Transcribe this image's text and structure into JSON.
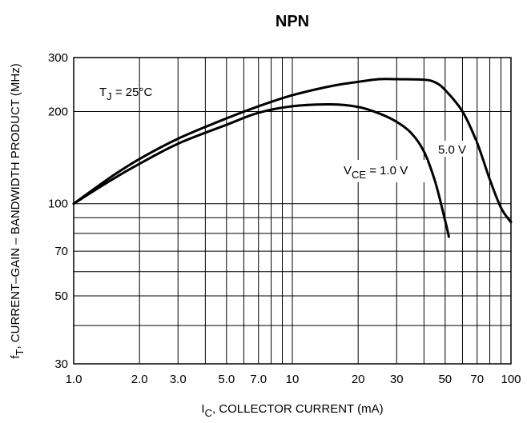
{
  "chart_data": {
    "type": "line",
    "title": "NPN",
    "xlabel": {
      "main": "I",
      "sub": "C",
      "rest": ", COLLECTOR CURRENT (mA)"
    },
    "ylabel": {
      "main": "f",
      "sub": "T",
      "rest": ", CURRENT–GAIN – BANDWIDTH PRODUCT (MHz)"
    },
    "x_scale": "log",
    "y_scale": "log",
    "xlim": [
      1,
      100
    ],
    "ylim": [
      30,
      300
    ],
    "grid": true,
    "x_ticks": [
      {
        "value": 1,
        "label": "1.0"
      },
      {
        "value": 2,
        "label": "2.0"
      },
      {
        "value": 3,
        "label": "3.0"
      },
      {
        "value": 5,
        "label": "5.0"
      },
      {
        "value": 7,
        "label": "7.0"
      },
      {
        "value": 10,
        "label": "10"
      },
      {
        "value": 20,
        "label": "20"
      },
      {
        "value": 30,
        "label": "30"
      },
      {
        "value": 50,
        "label": "50"
      },
      {
        "value": 70,
        "label": "70"
      },
      {
        "value": 100,
        "label": "100"
      }
    ],
    "y_ticks": [
      {
        "value": 30,
        "label": "30"
      },
      {
        "value": 50,
        "label": "50"
      },
      {
        "value": 70,
        "label": "70"
      },
      {
        "value": 100,
        "label": "100"
      },
      {
        "value": 200,
        "label": "200"
      },
      {
        "value": 300,
        "label": "300"
      }
    ],
    "x_grid": [
      1,
      2,
      3,
      4,
      5,
      6,
      7,
      8,
      9,
      10,
      20,
      30,
      40,
      50,
      60,
      70,
      80,
      90,
      100
    ],
    "y_grid": [
      30,
      40,
      50,
      60,
      70,
      80,
      90,
      100,
      200,
      300
    ],
    "series": [
      {
        "name": "5.0 V",
        "x": [
          1,
          1.5,
          2,
          3,
          5,
          7,
          10,
          15,
          20,
          25,
          30,
          40,
          45,
          50,
          60,
          70,
          80,
          90,
          100
        ],
        "y": [
          100,
          123,
          140,
          163,
          190,
          208,
          226,
          242,
          250,
          255,
          255,
          254,
          249,
          235,
          200,
          158,
          120,
          97,
          87
        ]
      },
      {
        "name": "V_CE = 1.0 V",
        "x": [
          1,
          1.5,
          2,
          3,
          5,
          7,
          10,
          15,
          20,
          25,
          30,
          35,
          40,
          45,
          50,
          52
        ],
        "y": [
          100,
          120,
          135,
          157,
          181,
          198,
          208,
          211,
          207,
          197,
          185,
          170,
          148,
          118,
          88,
          78
        ]
      }
    ],
    "annotations": {
      "tj": {
        "main": "T",
        "sub": "J",
        "rest": " = 25°C"
      },
      "vce_5": "5.0 V",
      "vce_1": {
        "main": "V",
        "sub": "CE",
        "rest": " = 1.0 V"
      }
    }
  }
}
